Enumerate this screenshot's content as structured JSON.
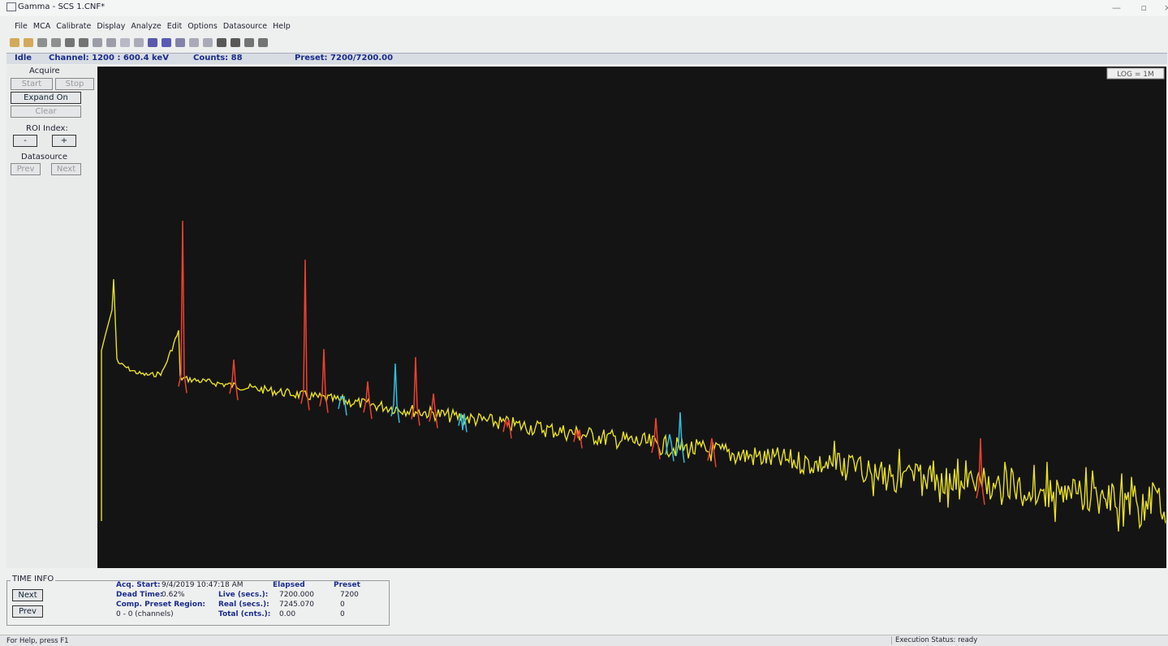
{
  "window": {
    "title": "Gamma - SCS 1.CNF*"
  },
  "menu": [
    "File",
    "MCA",
    "Calibrate",
    "Display",
    "Analyze",
    "Edit",
    "Options",
    "Datasource",
    "Help"
  ],
  "status": {
    "state": "Idle",
    "channel": "Channel: 1200  :  600.4 keV",
    "counts": "Counts: 88",
    "preset": "Preset: 7200/7200.00"
  },
  "sidebar": {
    "acquire": "Acquire",
    "start": "Start",
    "stop": "Stop",
    "expand": "Expand On",
    "clear": "Clear",
    "roi_index": "ROI Index:",
    "minus": "-",
    "plus": "+",
    "datasource": "Datasource",
    "prev": "Prev",
    "next": "Next"
  },
  "plot": {
    "scale_label": "LOG = 1M"
  },
  "time_info": {
    "title": "TIME INFO",
    "next": "Next",
    "prev": "Prev",
    "acq_start_label": "Acq. Start:",
    "acq_start": "9/4/2019 10:47:18 AM",
    "dead_time_label": "Dead Time:",
    "dead_time": "0.62%",
    "comp_preset_label": "Comp. Preset Region:",
    "channels": "0 - 0 (channels)",
    "headers": [
      "Elapsed",
      "Preset"
    ],
    "rows": [
      [
        "Live (secs.):",
        "7200.000",
        "7200"
      ],
      [
        "Real (secs.):",
        "7245.070",
        "0"
      ],
      [
        "Total (cnts.):",
        "0.00",
        "0"
      ]
    ]
  },
  "footer": {
    "help": "For Help, press F1",
    "execution": "Execution Status: ready"
  }
}
